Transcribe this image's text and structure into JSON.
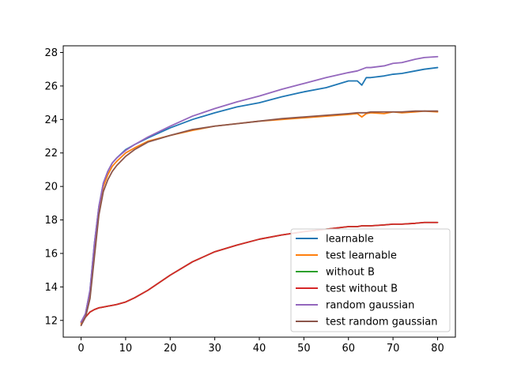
{
  "chart_data": {
    "type": "line",
    "title": "",
    "xlabel": "",
    "ylabel": "",
    "xlim": [
      -4,
      84
    ],
    "ylim": [
      11,
      28.4
    ],
    "xticks": [
      0,
      10,
      20,
      30,
      40,
      50,
      60,
      70,
      80
    ],
    "yticks": [
      12,
      14,
      16,
      18,
      20,
      22,
      24,
      26,
      28
    ],
    "grid": false,
    "legend_position": "lower-right",
    "x": [
      0,
      1,
      2,
      3,
      4,
      5,
      6,
      7,
      8,
      10,
      12,
      15,
      20,
      25,
      30,
      35,
      40,
      45,
      50,
      55,
      60,
      62,
      63,
      64,
      65,
      68,
      70,
      72,
      75,
      77,
      80
    ],
    "series": [
      {
        "name": "learnable",
        "color": "#1f77b4",
        "values": [
          11.9,
          12.4,
          13.8,
          16.6,
          18.8,
          20.2,
          20.9,
          21.4,
          21.7,
          22.2,
          22.5,
          22.9,
          23.5,
          24.0,
          24.4,
          24.75,
          25.0,
          25.35,
          25.65,
          25.9,
          26.3,
          26.3,
          26.05,
          26.5,
          26.5,
          26.6,
          26.7,
          26.75,
          26.9,
          27.0,
          27.1
        ]
      },
      {
        "name": "test learnable",
        "color": "#ff7f0e",
        "values": [
          11.8,
          12.3,
          13.5,
          16.2,
          18.6,
          20.0,
          20.7,
          21.2,
          21.5,
          22.0,
          22.3,
          22.7,
          23.05,
          23.35,
          23.6,
          23.75,
          23.9,
          24.0,
          24.1,
          24.2,
          24.3,
          24.35,
          24.15,
          24.35,
          24.4,
          24.35,
          24.45,
          24.4,
          24.45,
          24.5,
          24.45
        ]
      },
      {
        "name": "without B",
        "color": "#2ca02c",
        "values": [
          11.9,
          12.2,
          12.5,
          12.65,
          12.75,
          12.8,
          12.85,
          12.9,
          12.95,
          13.1,
          13.35,
          13.8,
          14.7,
          15.5,
          16.1,
          16.5,
          16.85,
          17.1,
          17.3,
          17.45,
          17.6,
          17.6,
          17.65,
          17.65,
          17.65,
          17.7,
          17.75,
          17.75,
          17.8,
          17.85,
          17.85
        ]
      },
      {
        "name": "test without B",
        "color": "#d62728",
        "values": [
          11.9,
          12.2,
          12.5,
          12.65,
          12.75,
          12.8,
          12.85,
          12.9,
          12.95,
          13.1,
          13.35,
          13.8,
          14.7,
          15.5,
          16.1,
          16.5,
          16.85,
          17.1,
          17.3,
          17.45,
          17.6,
          17.6,
          17.65,
          17.65,
          17.65,
          17.7,
          17.75,
          17.75,
          17.8,
          17.85,
          17.85
        ]
      },
      {
        "name": "random gaussian",
        "color": "#9467bd",
        "values": [
          11.9,
          12.4,
          13.8,
          16.6,
          18.8,
          20.2,
          20.9,
          21.4,
          21.7,
          22.15,
          22.5,
          22.95,
          23.6,
          24.2,
          24.65,
          25.05,
          25.4,
          25.8,
          26.15,
          26.5,
          26.8,
          26.9,
          27.0,
          27.1,
          27.1,
          27.2,
          27.35,
          27.4,
          27.6,
          27.7,
          27.75
        ]
      },
      {
        "name": "test random gaussian",
        "color": "#8c564b",
        "values": [
          11.7,
          12.2,
          13.3,
          15.8,
          18.3,
          19.7,
          20.4,
          20.9,
          21.25,
          21.8,
          22.2,
          22.65,
          23.05,
          23.4,
          23.6,
          23.75,
          23.9,
          24.05,
          24.15,
          24.25,
          24.35,
          24.4,
          24.4,
          24.4,
          24.45,
          24.45,
          24.45,
          24.45,
          24.5,
          24.5,
          24.5
        ]
      }
    ]
  }
}
